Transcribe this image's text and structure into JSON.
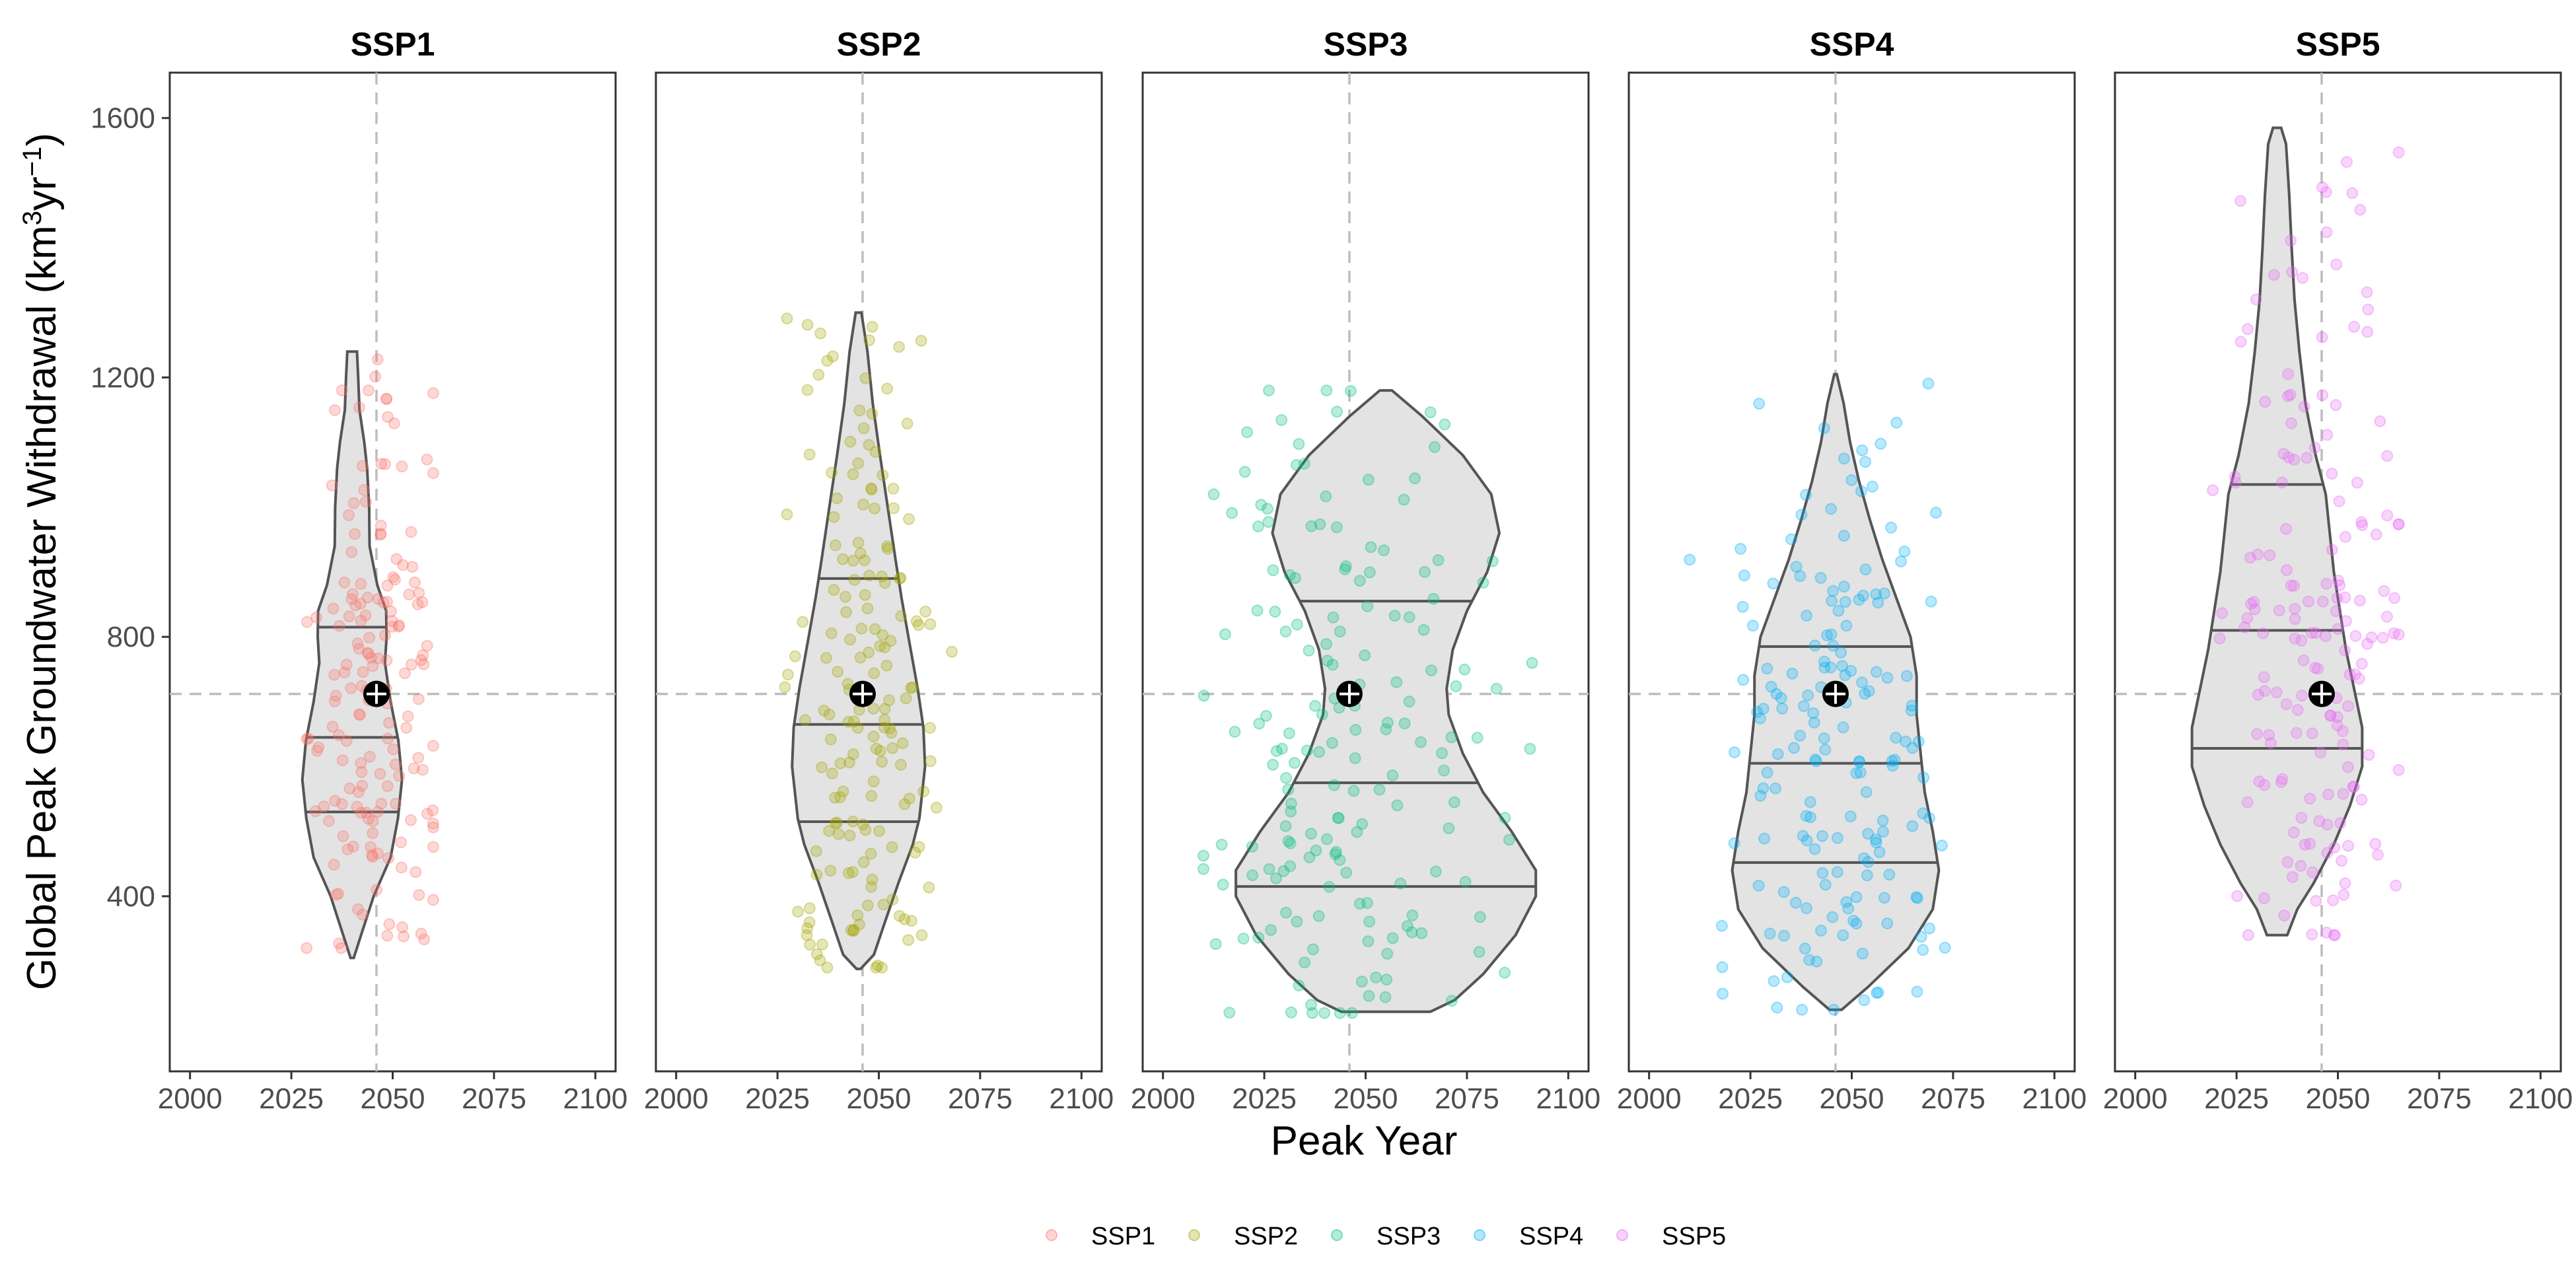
{
  "chart_data": {
    "type": "violin",
    "ylabel": "Global Peak Groundwater Withdrawal (km³yr⁻¹)",
    "ylabel_parts": {
      "main": "Global Peak Groundwater Withdrawal (km",
      "sup1": "3",
      "mid": "yr",
      "sup2": "−1",
      "end": ")"
    },
    "xlabel": "Peak Year",
    "xlim": [
      1995,
      2105
    ],
    "ylim": [
      130,
      1670
    ],
    "x_ticks": [
      2000,
      2025,
      2050,
      2075,
      2100
    ],
    "x_tick_labels": [
      "2000",
      "2025",
      "2050",
      "2075",
      "2100"
    ],
    "y_ticks": [
      400,
      800,
      1200,
      1600
    ],
    "y_tick_labels": [
      "400",
      "800",
      "1200",
      "1600"
    ],
    "reference": {
      "x": 2046,
      "y": 712
    },
    "grid": false,
    "legend_position": "bottom",
    "colors": {
      "SSP1": "#f8766d",
      "SSP2": "#a3a500",
      "SSP3": "#00bf7d",
      "SSP4": "#00b0f6",
      "SSP5": "#e76bf3",
      "violin_fill": "#e3e3e3",
      "violin_line": "#555555",
      "reference_line": "#bdbdbd"
    },
    "series": [
      {
        "name": "SSP1",
        "center_x": 2040,
        "mean": {
          "x": 2046,
          "y": 712
        },
        "quantiles": [
          530,
          645,
          815
        ],
        "profile": [
          [
            305,
            0.4
          ],
          [
            340,
            2.2
          ],
          [
            400,
            5.3
          ],
          [
            460,
            9.5
          ],
          [
            520,
            11.3
          ],
          [
            580,
            12.3
          ],
          [
            640,
            11.4
          ],
          [
            700,
            9.5
          ],
          [
            760,
            8.1
          ],
          [
            800,
            8.5
          ],
          [
            840,
            8.4
          ],
          [
            880,
            6.2
          ],
          [
            940,
            4.3
          ],
          [
            1000,
            4.2
          ],
          [
            1060,
            3.7
          ],
          [
            1100,
            3.0
          ],
          [
            1150,
            1.8
          ],
          [
            1200,
            1.5
          ],
          [
            1240,
            1.2
          ]
        ],
        "point_range": {
          "x": [
            2018,
            2060
          ],
          "y": [
            320,
            1240
          ]
        }
      },
      {
        "name": "SSP2",
        "center_x": 2045,
        "mean": {
          "x": 2046,
          "y": 712
        },
        "quantiles": [
          515,
          665,
          890
        ],
        "profile": [
          [
            288,
            0.5
          ],
          [
            310,
            3.8
          ],
          [
            360,
            6.5
          ],
          [
            420,
            9.8
          ],
          [
            480,
            13.4
          ],
          [
            520,
            15.0
          ],
          [
            560,
            15.7
          ],
          [
            600,
            16.4
          ],
          [
            660,
            16.0
          ],
          [
            720,
            14.6
          ],
          [
            800,
            12.3
          ],
          [
            860,
            10.6
          ],
          [
            920,
            9.1
          ],
          [
            1000,
            7.2
          ],
          [
            1080,
            5.3
          ],
          [
            1160,
            3.5
          ],
          [
            1240,
            2.2
          ],
          [
            1300,
            0.7
          ]
        ],
        "point_range": {
          "x": [
            2022,
            2068
          ],
          "y": [
            290,
            1310
          ]
        }
      },
      {
        "name": "SSP3",
        "center_x": 2055,
        "mean": {
          "x": 2046,
          "y": 712
        },
        "quantiles": [
          415,
          575,
          855
        ],
        "profile": [
          [
            222,
            11
          ],
          [
            240,
            17
          ],
          [
            280,
            24
          ],
          [
            340,
            32
          ],
          [
            400,
            37
          ],
          [
            440,
            37
          ],
          [
            500,
            31
          ],
          [
            560,
            24
          ],
          [
            620,
            19
          ],
          [
            680,
            15.5
          ],
          [
            720,
            15.0
          ],
          [
            780,
            16.5
          ],
          [
            840,
            20
          ],
          [
            900,
            25
          ],
          [
            960,
            28
          ],
          [
            1020,
            26
          ],
          [
            1080,
            19
          ],
          [
            1140,
            9
          ],
          [
            1180,
            1.5
          ]
        ],
        "point_range": {
          "x": [
            2010,
            2100
          ],
          "y": [
            220,
            1180
          ]
        }
      },
      {
        "name": "SSP4",
        "center_x": 2046,
        "mean": {
          "x": 2046,
          "y": 712
        },
        "quantiles": [
          452,
          605,
          785
        ],
        "profile": [
          [
            225,
            1.5
          ],
          [
            260,
            8
          ],
          [
            320,
            18
          ],
          [
            380,
            24
          ],
          [
            440,
            25.5
          ],
          [
            500,
            24
          ],
          [
            560,
            22
          ],
          [
            620,
            21
          ],
          [
            680,
            20
          ],
          [
            740,
            20
          ],
          [
            800,
            18.5
          ],
          [
            860,
            15
          ],
          [
            920,
            11.5
          ],
          [
            980,
            8.5
          ],
          [
            1040,
            5.8
          ],
          [
            1100,
            3.6
          ],
          [
            1160,
            2.0
          ],
          [
            1205,
            0.3
          ]
        ],
        "point_range": {
          "x": [
            2010,
            2080
          ],
          "y": [
            225,
            1205
          ]
        }
      },
      {
        "name": "SSP5",
        "center_x": 2035,
        "mean": {
          "x": 2046,
          "y": 712
        },
        "quantiles": [
          628,
          810,
          1035
        ],
        "profile": [
          [
            340,
            2.5
          ],
          [
            380,
            5
          ],
          [
            420,
            9
          ],
          [
            480,
            14
          ],
          [
            540,
            18
          ],
          [
            600,
            21
          ],
          [
            660,
            21
          ],
          [
            720,
            19
          ],
          [
            780,
            17
          ],
          [
            840,
            15.5
          ],
          [
            900,
            14
          ],
          [
            960,
            13
          ],
          [
            1020,
            12
          ],
          [
            1080,
            9.5
          ],
          [
            1160,
            7
          ],
          [
            1240,
            5.5
          ],
          [
            1320,
            4.3
          ],
          [
            1400,
            3.6
          ],
          [
            1480,
            3.0
          ],
          [
            1560,
            2.2
          ],
          [
            1585,
            1.0
          ]
        ],
        "point_range": {
          "x": [
            2008,
            2065
          ],
          "y": [
            340,
            1585
          ]
        }
      }
    ]
  },
  "legend": {
    "title": "",
    "items": [
      {
        "label": "SSP1",
        "color": "#f8766d"
      },
      {
        "label": "SSP2",
        "color": "#a3a500"
      },
      {
        "label": "SSP3",
        "color": "#00bf7d"
      },
      {
        "label": "SSP4",
        "color": "#00b0f6"
      },
      {
        "label": "SSP5",
        "color": "#e76bf3"
      }
    ]
  }
}
